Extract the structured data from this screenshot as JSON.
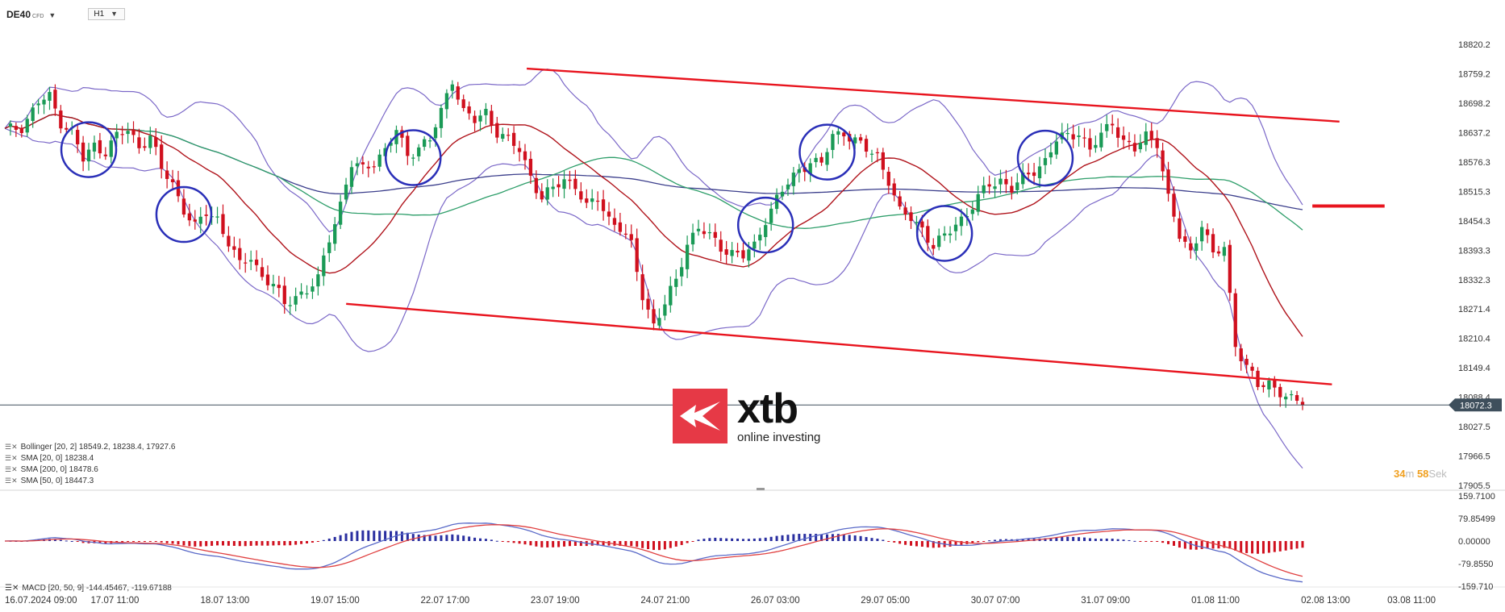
{
  "header": {
    "symbol": "DE40",
    "instrument_type": "CFD",
    "timeframe": "H1"
  },
  "legend": [
    {
      "name": "Bollinger",
      "text": "Bollinger  [20, 2] 18549.2,  18238.4,  17927.6",
      "color": "#7b68c8"
    },
    {
      "name": "SMA20",
      "text": "SMA [20, 0] 18238.4",
      "color": "#b0141c"
    },
    {
      "name": "SMA200",
      "text": "SMA [200, 0] 18478.6",
      "color": "#3c3f8c"
    },
    {
      "name": "SMA50",
      "text": "SMA [50, 0] 18447.3",
      "color": "#2e9e6a"
    }
  ],
  "macd_legend": "MACD  [20, 50, 9]  -144.45467,   -119.67188",
  "timer": {
    "minutes": "34",
    "minutes_unit": "m",
    "seconds": "58",
    "seconds_unit": "Sek"
  },
  "logo": {
    "name": "xtb",
    "tagline": "online investing"
  },
  "colors": {
    "bull": "#1a9a56",
    "bear": "#d0101e",
    "channel": "#e8141e",
    "circle": "#2a2fb8",
    "price_tag": "#3e4f5c",
    "macd_pos": "#2a2fa0",
    "macd_neg": "#d0101e"
  },
  "chart_data": [
    {
      "type": "candlestick",
      "instrument": "DE40",
      "timeframe": "H1",
      "y_ticks": [
        "18820.2",
        "18759.2",
        "18698.2",
        "18637.2",
        "18576.3",
        "18515.3",
        "18454.3",
        "18393.3",
        "18332.3",
        "18271.4",
        "18210.4",
        "18149.4",
        "18088.4",
        "18027.5",
        "17966.5",
        "17905.5"
      ],
      "ylim": [
        17905.5,
        18820.2
      ],
      "x_ticks": [
        "16.07.2024  09:00",
        "17.07  11:00",
        "18.07  13:00",
        "19.07  15:00",
        "22.07  17:00",
        "23.07  19:00",
        "24.07  21:00",
        "26.07  03:00",
        "29.07  05:00",
        "30.07  07:00",
        "31.07  09:00",
        "01.08  11:00",
        "02.08  13:00",
        "03.08  11:00"
      ],
      "current_price": "18072.3",
      "close_path": [
        [
          0,
          18640
        ],
        [
          3,
          18650
        ],
        [
          6,
          18700
        ],
        [
          8,
          18710
        ],
        [
          10,
          18660
        ],
        [
          12,
          18640
        ],
        [
          14,
          18580
        ],
        [
          16,
          18610
        ],
        [
          18,
          18600
        ],
        [
          20,
          18630
        ],
        [
          22,
          18640
        ],
        [
          24,
          18610
        ],
        [
          26,
          18630
        ],
        [
          28,
          18560
        ],
        [
          30,
          18530
        ],
        [
          32,
          18480
        ],
        [
          34,
          18440
        ],
        [
          36,
          18470
        ],
        [
          38,
          18460
        ],
        [
          40,
          18410
        ],
        [
          42,
          18360
        ],
        [
          44,
          18380
        ],
        [
          46,
          18340
        ],
        [
          48,
          18320
        ],
        [
          50,
          18280
        ],
        [
          52,
          18300
        ],
        [
          54,
          18310
        ],
        [
          56,
          18330
        ],
        [
          58,
          18420
        ],
        [
          60,
          18490
        ],
        [
          62,
          18570
        ],
        [
          64,
          18560
        ],
        [
          66,
          18580
        ],
        [
          68,
          18600
        ],
        [
          70,
          18640
        ],
        [
          72,
          18590
        ],
        [
          74,
          18610
        ],
        [
          76,
          18620
        ],
        [
          78,
          18680
        ],
        [
          80,
          18750
        ],
        [
          82,
          18680
        ],
        [
          84,
          18660
        ],
        [
          86,
          18680
        ],
        [
          88,
          18640
        ],
        [
          90,
          18620
        ],
        [
          92,
          18600
        ],
        [
          94,
          18550
        ],
        [
          96,
          18500
        ],
        [
          98,
          18520
        ],
        [
          100,
          18540
        ],
        [
          102,
          18530
        ],
        [
          104,
          18480
        ],
        [
          106,
          18500
        ],
        [
          108,
          18460
        ],
        [
          110,
          18440
        ],
        [
          112,
          18400
        ],
        [
          114,
          18300
        ],
        [
          116,
          18240
        ],
        [
          118,
          18280
        ],
        [
          120,
          18330
        ],
        [
          122,
          18410
        ],
        [
          124,
          18440
        ],
        [
          126,
          18420
        ],
        [
          128,
          18400
        ],
        [
          130,
          18390
        ],
        [
          132,
          18380
        ],
        [
          134,
          18400
        ],
        [
          136,
          18460
        ],
        [
          138,
          18500
        ],
        [
          140,
          18530
        ],
        [
          142,
          18560
        ],
        [
          144,
          18580
        ],
        [
          146,
          18570
        ],
        [
          148,
          18630
        ],
        [
          150,
          18640
        ],
        [
          152,
          18620
        ],
        [
          154,
          18600
        ],
        [
          156,
          18590
        ],
        [
          158,
          18540
        ],
        [
          160,
          18470
        ],
        [
          162,
          18460
        ],
        [
          164,
          18440
        ],
        [
          166,
          18400
        ],
        [
          168,
          18420
        ],
        [
          170,
          18450
        ],
        [
          172,
          18470
        ],
        [
          174,
          18500
        ],
        [
          176,
          18530
        ],
        [
          178,
          18540
        ],
        [
          180,
          18520
        ],
        [
          182,
          18540
        ],
        [
          184,
          18560
        ],
        [
          186,
          18580
        ],
        [
          188,
          18620
        ],
        [
          190,
          18630
        ],
        [
          192,
          18640
        ],
        [
          194,
          18600
        ],
        [
          196,
          18630
        ],
        [
          198,
          18660
        ],
        [
          200,
          18620
        ],
        [
          202,
          18600
        ],
        [
          204,
          18630
        ],
        [
          206,
          18620
        ],
        [
          208,
          18500
        ],
        [
          210,
          18420
        ],
        [
          212,
          18390
        ],
        [
          214,
          18450
        ],
        [
          216,
          18380
        ],
        [
          218,
          18400
        ],
        [
          220,
          18200
        ],
        [
          222,
          18150
        ],
        [
          224,
          18110
        ],
        [
          226,
          18120
        ],
        [
          228,
          18100
        ],
        [
          230,
          18080
        ],
        [
          232,
          18072
        ]
      ],
      "channel_upper": [
        [
          0.35,
          18770
        ],
        [
          0.89,
          18660
        ]
      ],
      "channel_lower": [
        [
          0.23,
          18282
        ],
        [
          0.885,
          18115
        ]
      ],
      "target_line": {
        "price": 18485,
        "from": 0.872,
        "to": 0.92
      },
      "circled_bars": [
        15,
        32,
        73,
        136,
        147,
        168,
        186
      ],
      "bars": 233
    },
    {
      "type": "macd",
      "ylim": [
        -159.71,
        159.71
      ],
      "y_ticks": [
        "159.7100",
        "79.85499",
        "0.00000",
        "-79.8550",
        "-159.710"
      ],
      "params": "[20, 50, 9]",
      "values": {
        "macd": -144.45467,
        "signal": -119.67188
      }
    }
  ]
}
